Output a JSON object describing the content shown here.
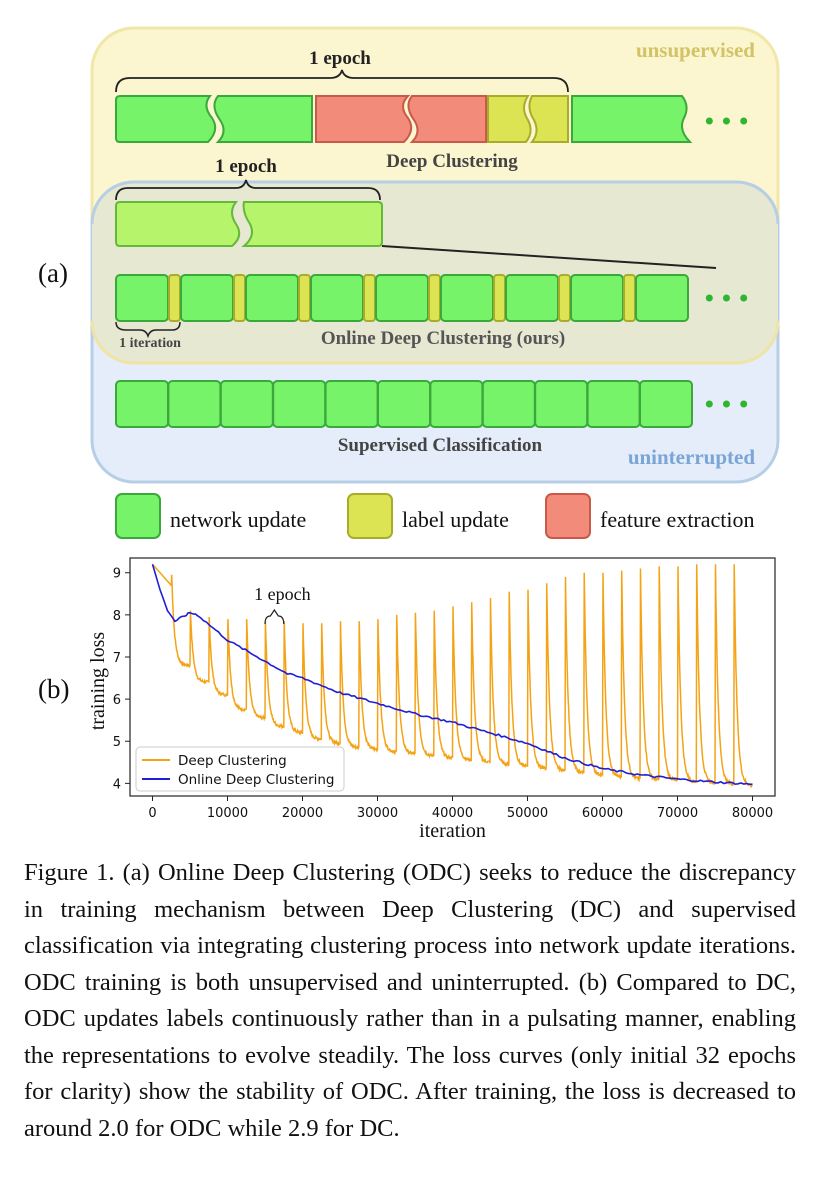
{
  "panel_a": {
    "panel_label": "(a)",
    "region_unsupervised": "unsupervised",
    "region_uninterrupted": "uninterrupted",
    "dc_epoch_label": "1 epoch",
    "dc_title": "Deep Clustering",
    "odc_epoch_label": "1 epoch",
    "odc_iteration_label": "1 iteration",
    "odc_title": "Online Deep Clustering (ours)",
    "sup_title": "Supervised Classification",
    "legend": [
      {
        "label": "network update",
        "color": "#77f36a"
      },
      {
        "label": "label update",
        "color": "#dde453"
      },
      {
        "label": "feature extraction",
        "color": "#f28b7a"
      }
    ],
    "ellipsis": "•••",
    "colors": {
      "unsupervised_bg": "#fbf6cf",
      "uninterrupted_bg": "#e4edf9",
      "unsupervised_text": "#d4c266",
      "uninterrupted_text": "#7aa5d6"
    }
  },
  "panel_b": {
    "panel_label": "(b)",
    "annotation": "1 epoch"
  },
  "chart_data": {
    "type": "line",
    "xlabel": "iteration",
    "ylabel": "training loss",
    "xlim": [
      -3000,
      83000
    ],
    "ylim": [
      3.7,
      9.35
    ],
    "xticks": [
      0,
      10000,
      20000,
      30000,
      40000,
      50000,
      60000,
      70000,
      80000
    ],
    "yticks": [
      4,
      5,
      6,
      7,
      8,
      9
    ],
    "legend_position": "lower-left",
    "grid": false,
    "series": [
      {
        "name": "Deep Clustering",
        "color": "#f5a316",
        "style": "pulsating",
        "start": [
          0,
          9.2
        ],
        "peaks": [
          [
            2500,
            8.95
          ],
          [
            5000,
            8.1
          ],
          [
            7500,
            7.95
          ],
          [
            10000,
            7.9
          ],
          [
            12500,
            7.9
          ],
          [
            15000,
            7.85
          ],
          [
            17500,
            7.85
          ],
          [
            20000,
            7.8
          ],
          [
            22500,
            7.8
          ],
          [
            25000,
            7.85
          ],
          [
            27500,
            7.85
          ],
          [
            30000,
            7.9
          ],
          [
            32500,
            8.0
          ],
          [
            35000,
            8.05
          ],
          [
            37500,
            8.1
          ],
          [
            40000,
            8.2
          ],
          [
            42500,
            8.3
          ],
          [
            45000,
            8.4
          ],
          [
            47500,
            8.55
          ],
          [
            50000,
            8.6
          ],
          [
            52500,
            8.75
          ],
          [
            55000,
            8.9
          ],
          [
            57500,
            9.0
          ],
          [
            60000,
            9.0
          ],
          [
            62500,
            9.05
          ],
          [
            65000,
            9.1
          ],
          [
            67500,
            9.15
          ],
          [
            70000,
            9.15
          ],
          [
            72500,
            9.2
          ],
          [
            75000,
            9.2
          ],
          [
            77500,
            9.2
          ]
        ],
        "troughs": [
          [
            2500,
            8.7
          ],
          [
            5000,
            6.8
          ],
          [
            7500,
            6.4
          ],
          [
            10000,
            6.1
          ],
          [
            12500,
            5.75
          ],
          [
            15000,
            5.55
          ],
          [
            17500,
            5.35
          ],
          [
            20000,
            5.2
          ],
          [
            22500,
            5.05
          ],
          [
            25000,
            4.95
          ],
          [
            27500,
            4.85
          ],
          [
            30000,
            4.8
          ],
          [
            32500,
            4.75
          ],
          [
            35000,
            4.7
          ],
          [
            37500,
            4.65
          ],
          [
            40000,
            4.6
          ],
          [
            42500,
            4.55
          ],
          [
            45000,
            4.5
          ],
          [
            47500,
            4.45
          ],
          [
            50000,
            4.4
          ],
          [
            52500,
            4.35
          ],
          [
            55000,
            4.3
          ],
          [
            57500,
            4.25
          ],
          [
            60000,
            4.2
          ],
          [
            62500,
            4.15
          ],
          [
            65000,
            4.1
          ],
          [
            67500,
            4.08
          ],
          [
            70000,
            4.05
          ],
          [
            72500,
            4.03
          ],
          [
            75000,
            4.0
          ],
          [
            77500,
            3.98
          ],
          [
            80000,
            3.95
          ]
        ]
      },
      {
        "name": "Online Deep Clustering",
        "color": "#1f1fd6",
        "style": "smooth",
        "points": [
          [
            0,
            9.2
          ],
          [
            1000,
            8.6
          ],
          [
            2000,
            8.1
          ],
          [
            3000,
            7.85
          ],
          [
            4000,
            7.95
          ],
          [
            5000,
            8.05
          ],
          [
            6000,
            8.0
          ],
          [
            8000,
            7.7
          ],
          [
            10000,
            7.4
          ],
          [
            12000,
            7.2
          ],
          [
            15000,
            6.9
          ],
          [
            18000,
            6.6
          ],
          [
            20000,
            6.5
          ],
          [
            25000,
            6.15
          ],
          [
            30000,
            5.9
          ],
          [
            35000,
            5.65
          ],
          [
            40000,
            5.45
          ],
          [
            45000,
            5.2
          ],
          [
            50000,
            4.95
          ],
          [
            55000,
            4.6
          ],
          [
            60000,
            4.35
          ],
          [
            65000,
            4.2
          ],
          [
            70000,
            4.1
          ],
          [
            75000,
            4.03
          ],
          [
            80000,
            3.98
          ]
        ]
      }
    ]
  },
  "caption": "Figure 1. (a) Online Deep Clustering (ODC) seeks to reduce the discrepancy in training mechanism between Deep Clustering (DC) and supervised classification via integrating clustering process into network update iterations. ODC training is both unsupervised and uninterrupted. (b) Compared to DC, ODC updates labels continuously rather than in a pulsating manner, enabling the representations to evolve steadily. The loss curves (only initial 32 epochs for clarity) show the stability of ODC. After training, the loss is decreased to around 2.0 for ODC while 2.9 for DC."
}
